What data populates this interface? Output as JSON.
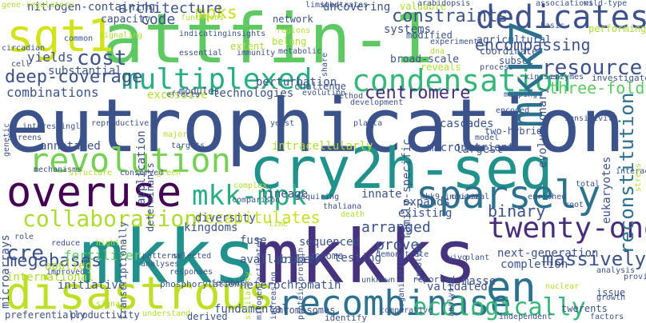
{
  "words": [
    {
      "text": "eutrophication",
      "color": "#3b528b"
    },
    {
      "text": "attfin-1",
      "color": "#5ec962"
    },
    {
      "text": "mkks",
      "color": "#21918c"
    },
    {
      "text": "mkkks",
      "color": "#46327e"
    },
    {
      "text": "cry2h-seq",
      "color": "#21918c"
    },
    {
      "text": "disastrous",
      "color": "#bddf26"
    },
    {
      "text": "overuse",
      "color": "#440154"
    },
    {
      "text": "revolution",
      "color": "#75d054"
    },
    {
      "text": "sgt1",
      "color": "#d2e21b"
    },
    {
      "text": "mkk7",
      "color": "#2c728e"
    },
    {
      "text": "dedicates",
      "color": "#3b528b"
    },
    {
      "text": "sparsely",
      "color": "#2c728e"
    },
    {
      "text": "recombinase",
      "color": "#2c728e"
    },
    {
      "text": "condensation",
      "color": "#35b779"
    },
    {
      "text": "en",
      "color": "#2c728e"
    },
    {
      "text": "multiplexed",
      "color": "#28ae80"
    },
    {
      "text": "mkk-mpk",
      "color": "#28ae80"
    },
    {
      "text": "twenty-one",
      "color": "#472d7b"
    },
    {
      "text": "ecologically",
      "color": "#35b779"
    },
    {
      "text": "collaboration",
      "color": "#addc30"
    },
    {
      "text": "reconstitution",
      "color": "#2c728e"
    },
    {
      "text": "constraints",
      "color": "#3b528b"
    },
    {
      "text": "cost",
      "color": "#3b528b"
    },
    {
      "text": "deep-coverage",
      "color": "#3b528b"
    },
    {
      "text": "mpks",
      "color": "#c8e020"
    },
    {
      "text": "architecture",
      "color": "#3b528b"
    },
    {
      "text": "code",
      "color": "#3b528b"
    },
    {
      "text": "resource",
      "color": "#3b528b"
    },
    {
      "text": "three-fold",
      "color": "#5ec962"
    },
    {
      "text": "centromere",
      "color": "#472d7b"
    },
    {
      "text": "cre",
      "color": "#3b528b"
    },
    {
      "text": "megabases",
      "color": "#3b528b"
    },
    {
      "text": "recapitulates",
      "color": "#c8e020"
    },
    {
      "text": "massively",
      "color": "#3b528b"
    },
    {
      "text": "binary",
      "color": "#3b528b"
    },
    {
      "text": "encompassing",
      "color": "#3b528b"
    },
    {
      "text": "yields",
      "color": "#3b528b"
    },
    {
      "text": "combinations",
      "color": "#3b528b"
    },
    {
      "text": "fertilizer",
      "color": "#5ec962"
    },
    {
      "text": "applied",
      "color": "#addc30"
    },
    {
      "text": "international",
      "color": "#addc30"
    },
    {
      "text": "initiative",
      "color": "#3b528b"
    },
    {
      "text": "macronutrient",
      "color": "#3b528b"
    },
    {
      "text": "intracellularly",
      "color": "#addc30"
    },
    {
      "text": "arranged",
      "color": "#3b528b"
    },
    {
      "text": "prove",
      "color": "#3b528b"
    },
    {
      "text": "heterochromatin",
      "color": "#3b528b"
    },
    {
      "text": "next-generation",
      "color": "#3b528b"
    },
    {
      "text": "completion",
      "color": "#3b528b"
    },
    {
      "text": "masse",
      "color": "#3b528b"
    },
    {
      "text": "validated",
      "color": "#3b528b"
    },
    {
      "text": "chromosomes",
      "color": "#3b528b"
    },
    {
      "text": "fundamental",
      "color": "#3b528b"
    },
    {
      "text": "systems",
      "color": "#3b528b"
    },
    {
      "text": "nitrogen-containing",
      "color": "#3b528b"
    },
    {
      "text": "capacity",
      "color": "#3b528b"
    },
    {
      "text": "uncovering",
      "color": "#3b528b"
    },
    {
      "text": "valuable",
      "color": "#addc30"
    },
    {
      "text": "agricultural",
      "color": "#3b528b"
    },
    {
      "text": "coordinate",
      "color": "#3b528b"
    },
    {
      "text": "broad-scale",
      "color": "#3b528b"
    },
    {
      "text": "substantial",
      "color": "#3b528b"
    },
    {
      "text": "excessive",
      "color": "#addc30"
    },
    {
      "text": "technologies",
      "color": "#3b528b"
    },
    {
      "text": "perturbation",
      "color": "#3b528b"
    },
    {
      "text": "challenge",
      "color": "#3b528b"
    },
    {
      "text": "kingdoms",
      "color": "#3b528b"
    },
    {
      "text": "diversity",
      "color": "#3b528b"
    },
    {
      "text": "lineage",
      "color": "#3b528b"
    },
    {
      "text": "innate",
      "color": "#3b528b"
    },
    {
      "text": "existing",
      "color": "#3b528b"
    },
    {
      "text": "cascades",
      "color": "#3b528b"
    },
    {
      "text": "family-specific",
      "color": "#3b528b"
    },
    {
      "text": "expands",
      "color": "#3b528b"
    },
    {
      "text": "largest",
      "color": "#3b528b"
    },
    {
      "text": "evolutionary",
      "color": "#3b528b"
    },
    {
      "text": "eukaryotes",
      "color": "#3b528b"
    },
    {
      "text": "annotated",
      "color": "#3b528b"
    },
    {
      "text": "application",
      "color": "#3b528b"
    },
    {
      "text": "fuse",
      "color": "#3b528b"
    },
    {
      "text": "sequenced",
      "color": "#3b528b"
    },
    {
      "text": "testing",
      "color": "#3b528b"
    },
    {
      "text": "probe",
      "color": "#3b528b"
    },
    {
      "text": "genome",
      "color": "#3b528b"
    },
    {
      "text": "availability",
      "color": "#3b528b"
    },
    {
      "text": "network",
      "color": "#3b528b"
    },
    {
      "text": "belong",
      "color": "#addc30"
    },
    {
      "text": "extent",
      "color": "#addc30"
    },
    {
      "text": "modules",
      "color": "#3b528b"
    },
    {
      "text": "modified",
      "color": "#3b528b"
    },
    {
      "text": "performing",
      "color": "#addc30"
    },
    {
      "text": "reveals",
      "color": "#addc30"
    },
    {
      "text": "subset",
      "color": "#3b528b"
    },
    {
      "text": "investigate",
      "color": "#3b528b"
    },
    {
      "text": "two-hybrid",
      "color": "#3b528b"
    },
    {
      "text": "issue",
      "color": "#3b528b"
    },
    {
      "text": "twerents",
      "color": "#3b528b"
    },
    {
      "text": "microarrays",
      "color": "#3b528b"
    },
    {
      "text": "transcriptionally",
      "color": "#3b528b"
    },
    {
      "text": "mitogen-activated",
      "color": "#3b528b"
    },
    {
      "text": "protein-protein",
      "color": "#3b528b"
    },
    {
      "text": "efficiency",
      "color": "#3b528b"
    },
    {
      "text": "preferentially",
      "color": "#3b528b"
    },
    {
      "text": "productivity",
      "color": "#3b528b"
    },
    {
      "text": "phosphorylation",
      "color": "#3b528b"
    },
    {
      "text": "determinants",
      "color": "#3b528b"
    },
    {
      "text": "identify",
      "color": "#3b528b"
    },
    {
      "text": "comparative",
      "color": "#addc30"
    },
    {
      "text": "understand",
      "color": "#3b528b"
    },
    {
      "text": "derived",
      "color": "#3b528b"
    },
    {
      "text": "feedback",
      "color": "#3b528b"
    },
    {
      "text": "involved",
      "color": "#3b528b"
    },
    {
      "text": "reported",
      "color": "#3b528b"
    },
    {
      "text": "independent",
      "color": "#3b528b"
    },
    {
      "text": "factors",
      "color": "#3b528b"
    },
    {
      "text": "interactions",
      "color": "#addc30"
    },
    {
      "text": "stress",
      "color": "#3b528b"
    },
    {
      "text": "provide",
      "color": "#3b528b"
    },
    {
      "text": "growth",
      "color": "#3b528b"
    },
    {
      "text": "circadian",
      "color": "#3b528b"
    },
    {
      "text": "common",
      "color": "#addc30"
    },
    {
      "text": "signaling",
      "color": "#3b528b"
    },
    {
      "text": "indicating",
      "color": "#3b528b"
    },
    {
      "text": "insights",
      "color": "#3b528b"
    },
    {
      "text": "immunity",
      "color": "#3b528b"
    },
    {
      "text": "metabolic",
      "color": "#3b528b"
    },
    {
      "text": "essential",
      "color": "#addc30"
    },
    {
      "text": "regions",
      "color": "#addc30"
    },
    {
      "text": "functions",
      "color": "#3b528b"
    },
    {
      "text": "arabidopsis",
      "color": "#3b528b"
    },
    {
      "text": "associations",
      "color": "#3b528b"
    },
    {
      "text": "wild-type",
      "color": "#3b528b"
    },
    {
      "text": "basic",
      "color": "#3b528b"
    },
    {
      "text": "kinases",
      "color": "#3b528b"
    },
    {
      "text": "enzymes",
      "color": "#addc30"
    },
    {
      "text": "gene-regulatory",
      "color": "#3b528b"
    },
    {
      "text": "genetic",
      "color": "#3b528b"
    },
    {
      "text": "interestingly",
      "color": "#3b528b"
    },
    {
      "text": "screens",
      "color": "#3b528b"
    },
    {
      "text": "mechanisms",
      "color": "#addc30"
    },
    {
      "text": "structure",
      "color": "#3b528b"
    },
    {
      "text": "conserved",
      "color": "#addc30"
    },
    {
      "text": "green",
      "color": "#addc30"
    },
    {
      "text": "complex",
      "color": "#3b528b"
    },
    {
      "text": "comparison",
      "color": "#3b528b"
    },
    {
      "text": "requiring",
      "color": "#3b528b"
    },
    {
      "text": "thaliana",
      "color": "#3b528b"
    },
    {
      "text": "mkk9-induced",
      "color": "#3b528b"
    },
    {
      "text": "critical",
      "color": "#3b528b"
    },
    {
      "text": "enriched",
      "color": "#3b528b"
    },
    {
      "text": "total",
      "color": "#3b528b"
    },
    {
      "text": "root",
      "color": "#3b528b"
    },
    {
      "text": "vivo",
      "color": "#3b528b"
    },
    {
      "text": "plant",
      "color": "#3b528b"
    },
    {
      "text": "unknown",
      "color": "#3b528b"
    },
    {
      "text": "demonstrate",
      "color": "#3b528b"
    },
    {
      "text": "responses",
      "color": "#3b528b"
    },
    {
      "text": "analyses",
      "color": "#3b528b"
    },
    {
      "text": "selected",
      "color": "#3b528b"
    },
    {
      "text": "patterns",
      "color": "#3b528b"
    },
    {
      "text": "improved",
      "color": "#3b528b"
    },
    {
      "text": "reduce",
      "color": "#3b528b"
    },
    {
      "text": "cell",
      "color": "#3b528b"
    },
    {
      "text": "role",
      "color": "#3b528b"
    },
    {
      "text": "reproductive",
      "color": "#3b528b"
    },
    {
      "text": "targets",
      "color": "#3b528b"
    },
    {
      "text": "yeast",
      "color": "#addc30"
    },
    {
      "text": "major",
      "color": "#3b528b"
    },
    {
      "text": "planta",
      "color": "#3b528b"
    },
    {
      "text": "model",
      "color": "#3b528b"
    },
    {
      "text": "sensitivity",
      "color": "#3b528b"
    },
    {
      "text": "mapping",
      "color": "#3b528b"
    },
    {
      "text": "encoded",
      "color": "#3b528b"
    },
    {
      "text": "evolution",
      "color": "#3b528b"
    },
    {
      "text": "method",
      "color": "#3b528b"
    },
    {
      "text": "development",
      "color": "#3b528b"
    },
    {
      "text": "share",
      "color": "#3b528b"
    },
    {
      "text": "experiments",
      "color": "#3b528b"
    },
    {
      "text": "process",
      "color": "#addc30"
    },
    {
      "text": "dna",
      "color": "#3b528b"
    },
    {
      "text": "limited",
      "color": "#3b528b"
    },
    {
      "text": "substrates",
      "color": "#3b528b"
    },
    {
      "text": "effects",
      "color": "#3b528b"
    },
    {
      "text": "increasing",
      "color": "#3b528b"
    },
    {
      "text": "organization",
      "color": "#3b528b"
    },
    {
      "text": "analysis",
      "color": "#3b528b"
    },
    {
      "text": "highly",
      "color": "#addc30"
    },
    {
      "text": "similarity",
      "color": "#addc30"
    },
    {
      "text": "death",
      "color": "#addc30"
    },
    {
      "text": "time",
      "color": "#addc30"
    },
    {
      "text": "signal",
      "color": "#addc30"
    },
    {
      "text": "nuclear",
      "color": "#addc30"
    }
  ]
}
